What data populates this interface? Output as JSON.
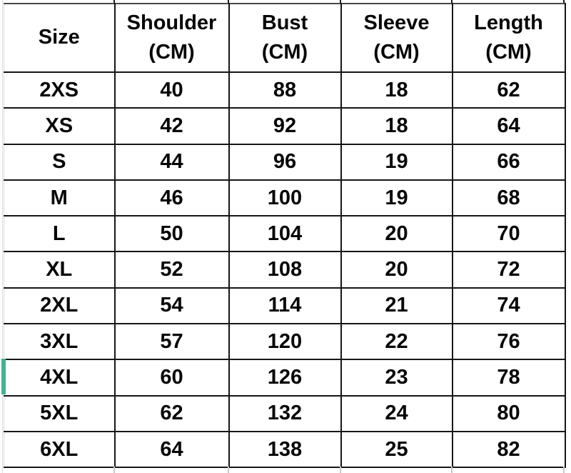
{
  "table": {
    "columns": [
      {
        "label": "Size",
        "unit": ""
      },
      {
        "label": "Shoulder",
        "unit": "(CM)"
      },
      {
        "label": "Bust",
        "unit": "(CM)"
      },
      {
        "label": "Sleeve",
        "unit": "(CM)"
      },
      {
        "label": "Length",
        "unit": "(CM)"
      }
    ],
    "rows": [
      [
        "2XS",
        "40",
        "88",
        "18",
        "62"
      ],
      [
        "XS",
        "42",
        "92",
        "18",
        "64"
      ],
      [
        "S",
        "44",
        "96",
        "19",
        "66"
      ],
      [
        "M",
        "46",
        "100",
        "19",
        "68"
      ],
      [
        "L",
        "50",
        "104",
        "20",
        "70"
      ],
      [
        "XL",
        "52",
        "108",
        "20",
        "72"
      ],
      [
        "2XL",
        "54",
        "114",
        "21",
        "74"
      ],
      [
        "3XL",
        "57",
        "120",
        "22",
        "76"
      ],
      [
        "4XL",
        "60",
        "126",
        "23",
        "78"
      ],
      [
        "5XL",
        "62",
        "132",
        "24",
        "80"
      ],
      [
        "6XL",
        "64",
        "138",
        "25",
        "82"
      ]
    ],
    "selected_row": "4XL"
  },
  "chart_data": {
    "type": "table",
    "columns": [
      "Size",
      "Shoulder (CM)",
      "Bust (CM)",
      "Sleeve (CM)",
      "Length (CM)"
    ],
    "rows": [
      [
        "2XS",
        40,
        88,
        18,
        62
      ],
      [
        "XS",
        42,
        92,
        18,
        64
      ],
      [
        "S",
        44,
        96,
        19,
        66
      ],
      [
        "M",
        46,
        100,
        19,
        68
      ],
      [
        "L",
        50,
        104,
        20,
        70
      ],
      [
        "XL",
        52,
        108,
        20,
        72
      ],
      [
        "2XL",
        54,
        114,
        21,
        74
      ],
      [
        "3XL",
        57,
        120,
        22,
        76
      ],
      [
        "4XL",
        60,
        126,
        23,
        78
      ],
      [
        "5XL",
        62,
        132,
        24,
        80
      ],
      [
        "6XL",
        64,
        138,
        25,
        82
      ]
    ]
  },
  "colors": {
    "cell_border": "#161616",
    "top_border": "#4a4a4a",
    "light_gridline": "#d7dede",
    "bottom_stub": "#c4cccc",
    "selection_green": "#46b18b",
    "text": "#060606",
    "background": "#ffffff"
  }
}
